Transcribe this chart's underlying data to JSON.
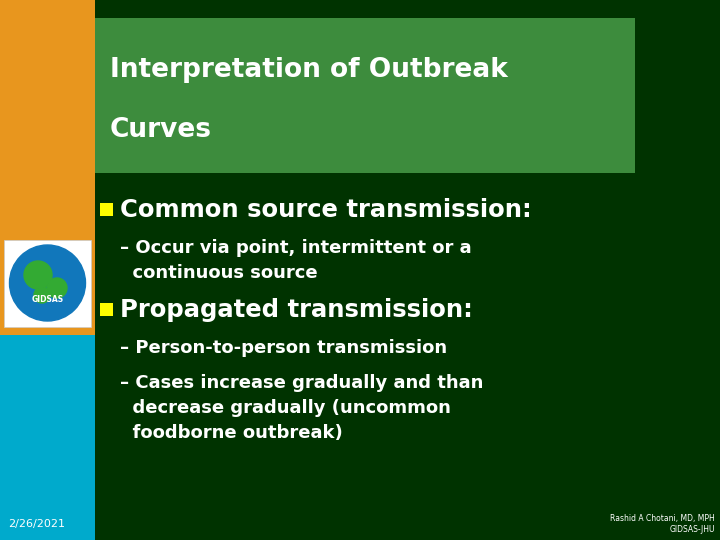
{
  "title_line1": "Interpretation of Outbreak",
  "title_line2": "Curves",
  "bg_color": "#003300",
  "title_bg_color": "#3D8C3D",
  "left_bar_orange": "#E8961E",
  "left_bar_blue": "#00AACC",
  "bullet1": "Common source transmission:",
  "sub1_line1": "– Occur via point, intermittent or a",
  "sub1_line2": "  continuous source",
  "bullet2": "Propagated transmission:",
  "sub2_1": "– Person-to-person transmission",
  "sub2_2_line1": "– Cases increase gradually and than",
  "sub2_2_line2": "  decrease gradually (uncommon",
  "sub2_2_line3": "  foodborne outbreak)",
  "date": "2/26/2021",
  "author_line1": "Rashid A Chotani, MD, MPH",
  "author_line2": "GIDSAS-JHU",
  "white": "#FFFFFF",
  "bullet_color": "#FFFF00",
  "globe_blue": "#1177BB",
  "globe_green": "#33AA33",
  "globe_label": "GIDSAS"
}
